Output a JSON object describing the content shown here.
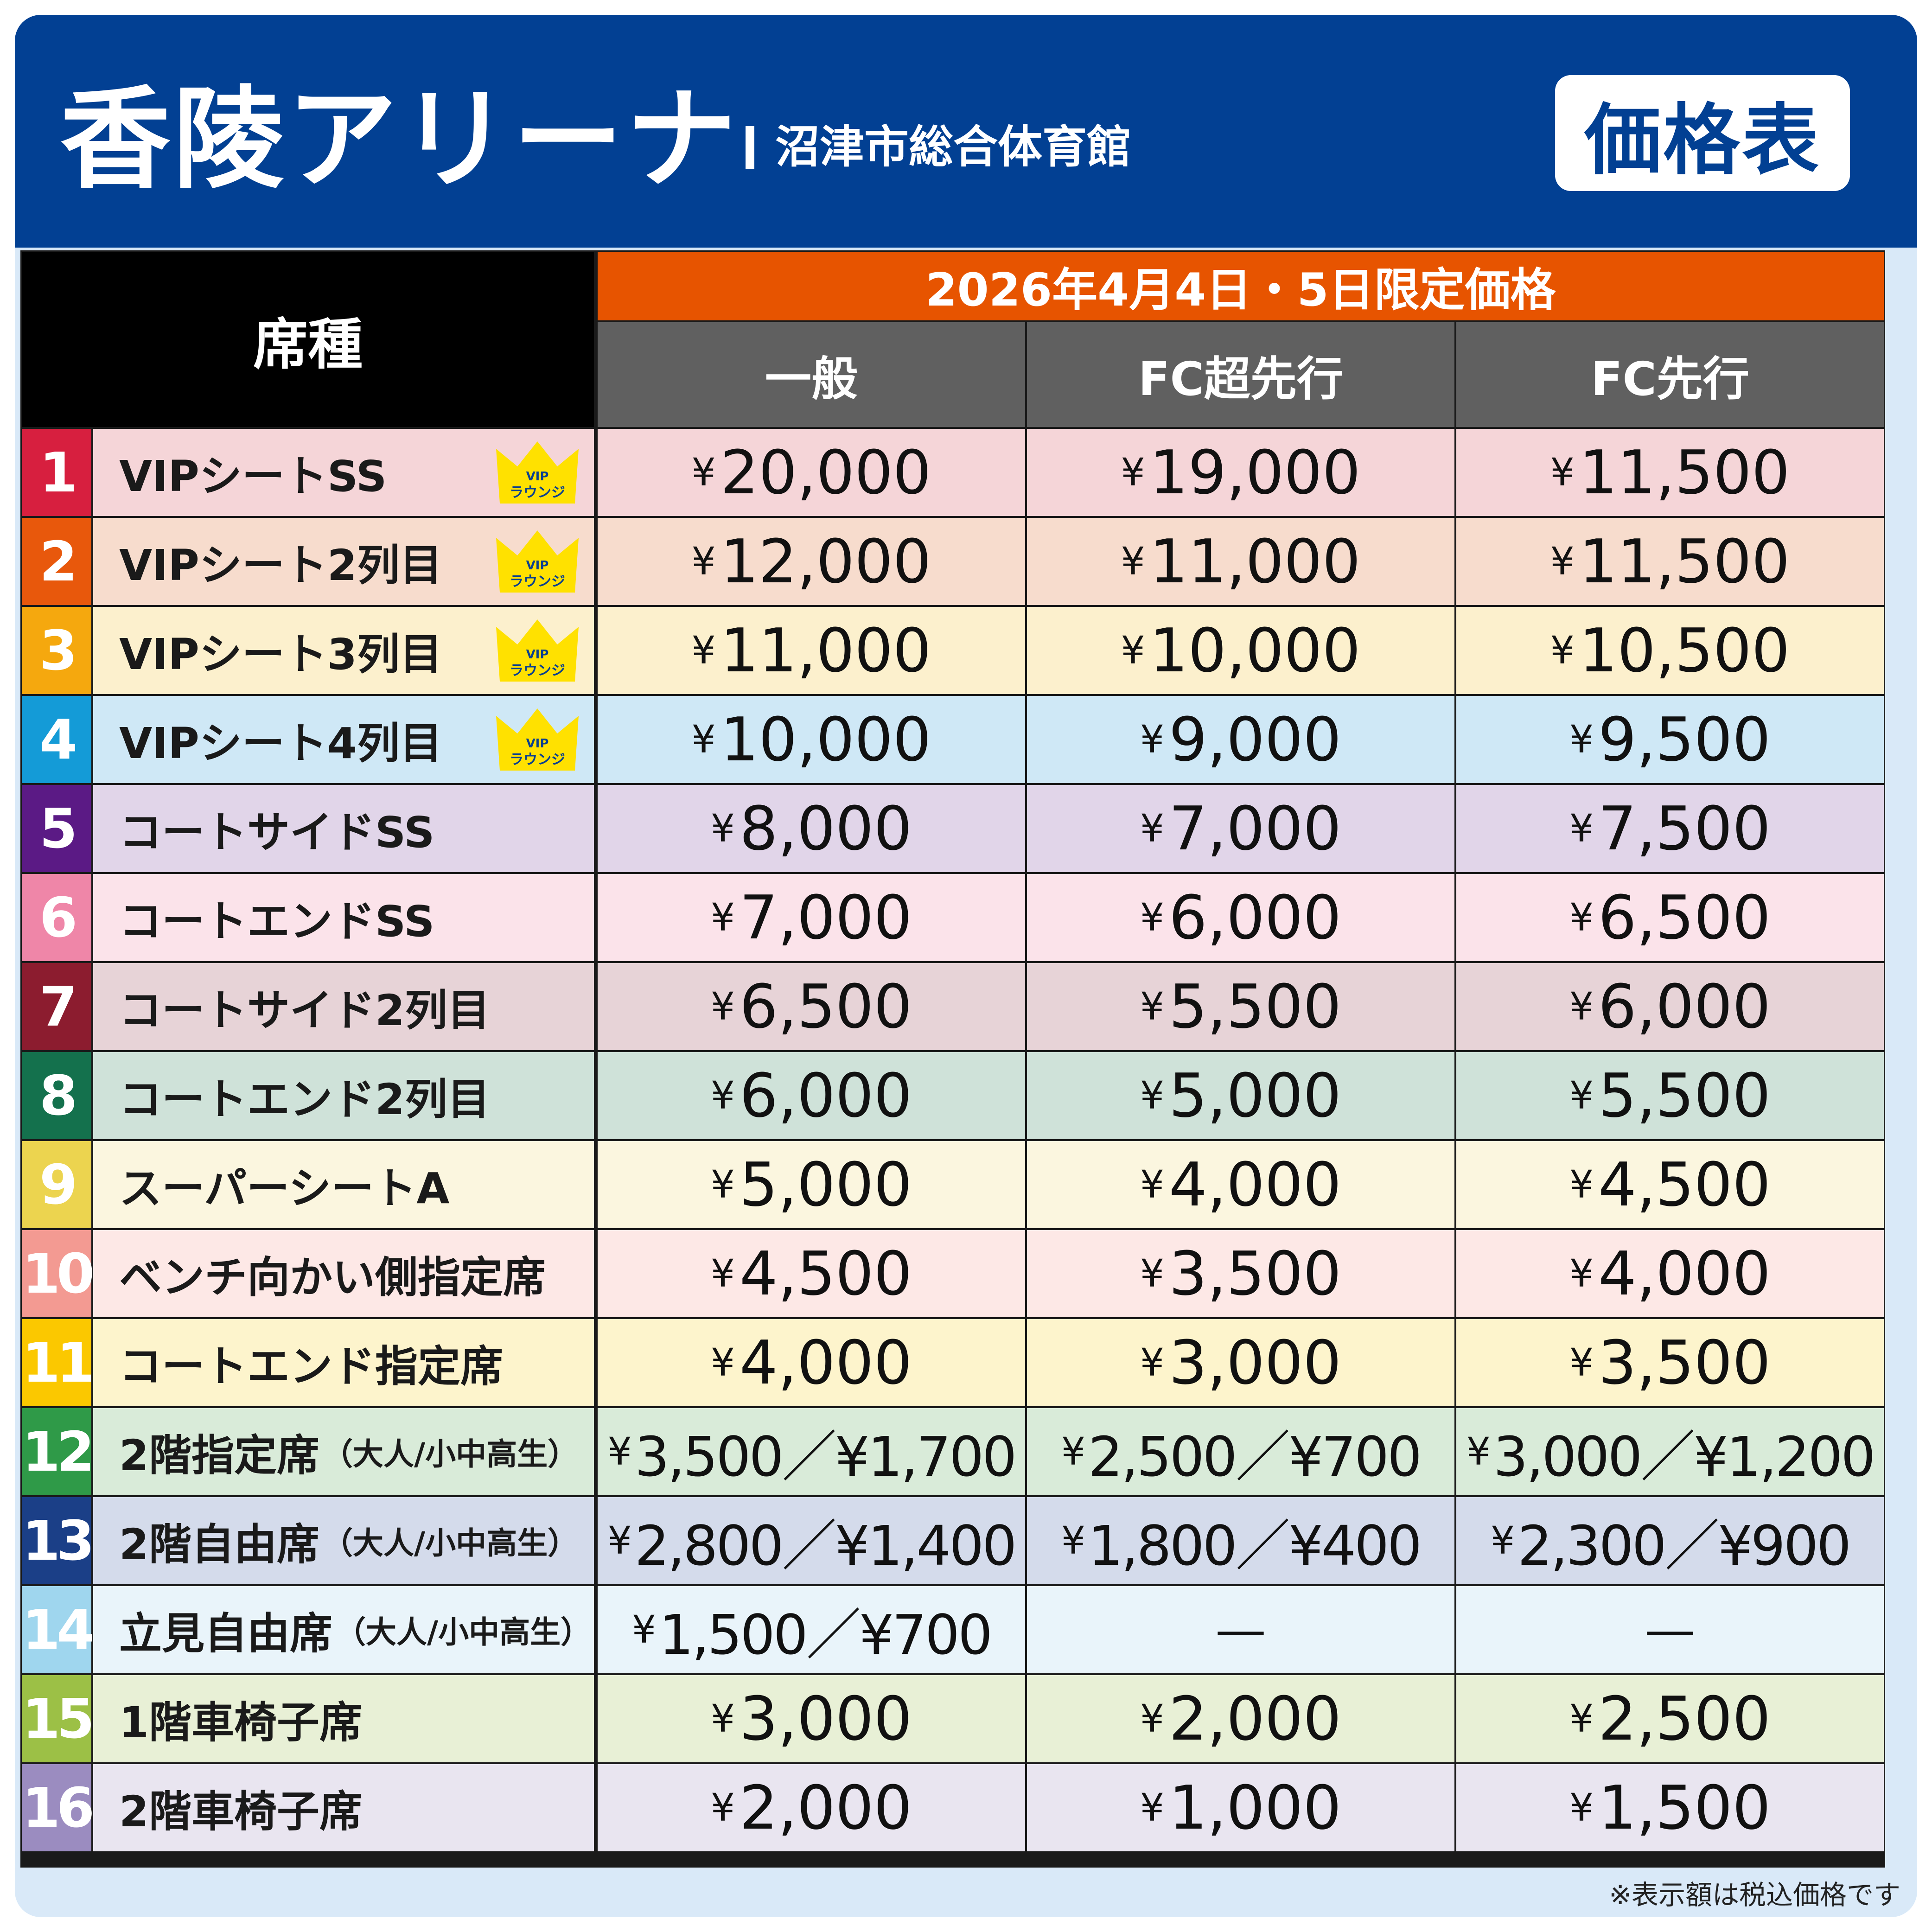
{
  "header": {
    "venue": "香陵アリーナ",
    "subtitle": "沼津市総合体育館",
    "badge": "価格表"
  },
  "table": {
    "seat_header": "席種",
    "date_header": "2026年4月4日・5日限定価格",
    "columns": [
      "一般",
      "FC超先行",
      "FC先行"
    ],
    "rows": [
      {
        "num": "1",
        "name": "VIPシートSS",
        "note": "",
        "vip": true,
        "prices": [
          "20,000",
          "19,000",
          "11,500"
        ],
        "num_color": "#d71f3f",
        "bg": "#f5d5d8"
      },
      {
        "num": "2",
        "name": "VIPシート2列目",
        "note": "",
        "vip": true,
        "prices": [
          "12,000",
          "11,000",
          "11,500"
        ],
        "num_color": "#e8580c",
        "bg": "#f7dccd"
      },
      {
        "num": "3",
        "name": "VIPシート3列目",
        "note": "",
        "vip": true,
        "prices": [
          "11,000",
          "10,000",
          "10,500"
        ],
        "num_color": "#f5a80e",
        "bg": "#fcf0cd"
      },
      {
        "num": "4",
        "name": "VIPシート4列目",
        "note": "",
        "vip": true,
        "prices": [
          "10,000",
          "9,000",
          "9,500"
        ],
        "num_color": "#149bd7",
        "bg": "#cfe8f6"
      },
      {
        "num": "5",
        "name": "コートサイドSS",
        "note": "",
        "vip": false,
        "prices": [
          "8,000",
          "7,000",
          "7,500"
        ],
        "num_color": "#5b1a85",
        "bg": "#e1d5e9"
      },
      {
        "num": "6",
        "name": "コートエンドSS",
        "note": "",
        "vip": false,
        "prices": [
          "7,000",
          "6,000",
          "6,500"
        ],
        "num_color": "#ef86a8",
        "bg": "#fbe3ea"
      },
      {
        "num": "7",
        "name": "コートサイド2列目",
        "note": "",
        "vip": false,
        "prices": [
          "6,500",
          "5,500",
          "6,000"
        ],
        "num_color": "#8c1c2f",
        "bg": "#e7d3d7"
      },
      {
        "num": "8",
        "name": "コートエンド2列目",
        "note": "",
        "vip": false,
        "prices": [
          "6,000",
          "5,000",
          "5,500"
        ],
        "num_color": "#14714d",
        "bg": "#cfe2d9"
      },
      {
        "num": "9",
        "name": "スーパーシートA",
        "note": "",
        "vip": false,
        "prices": [
          "5,000",
          "4,000",
          "4,500"
        ],
        "num_color": "#ecd44f",
        "bg": "#fbf6df"
      },
      {
        "num": "10",
        "name": "ベンチ向かい側指定席",
        "note": "",
        "vip": false,
        "prices": [
          "4,500",
          "3,500",
          "4,000"
        ],
        "num_color": "#f39a92",
        "bg": "#fde8e6"
      },
      {
        "num": "11",
        "name": "コートエンド指定席",
        "note": "",
        "vip": false,
        "prices": [
          "4,000",
          "3,000",
          "3,500"
        ],
        "num_color": "#fbc800",
        "bg": "#fdf4cc"
      },
      {
        "num": "12",
        "name": "2階指定席",
        "note": "（大人/小中高生）",
        "vip": false,
        "prices": [
          "3,500／¥1,700",
          "2,500／¥700",
          "3,000／¥1,200"
        ],
        "num_color": "#2f9a48",
        "bg": "#d9ebd9"
      },
      {
        "num": "13",
        "name": "2階自由席",
        "note": "（大人/小中高生）",
        "vip": false,
        "prices": [
          "2,800／¥1,400",
          "1,800／¥400",
          "2,300／¥900"
        ],
        "num_color": "#1b3f87",
        "bg": "#d4dbeb"
      },
      {
        "num": "14",
        "name": "立見自由席",
        "note": "（大人/小中高生）",
        "vip": false,
        "prices": [
          "1,500／¥700",
          "—",
          "—"
        ],
        "num_color": "#9fd6ee",
        "bg": "#e9f4fa"
      },
      {
        "num": "15",
        "name": "1階車椅子席",
        "note": "",
        "vip": false,
        "prices": [
          "3,000",
          "2,000",
          "2,500"
        ],
        "num_color": "#9cc046",
        "bg": "#e8f0d6"
      },
      {
        "num": "16",
        "name": "2階車椅子席",
        "note": "",
        "vip": false,
        "prices": [
          "2,000",
          "1,000",
          "1,500"
        ],
        "num_color": "#9b8cc0",
        "bg": "#e9e5f0"
      }
    ]
  },
  "vip_badge": {
    "line1": "VIP",
    "line2": "ラウンジ",
    "color": "#ffe100"
  },
  "footnote": "※表示額は税込価格です",
  "colors": {
    "header_bg": "#024093",
    "date_header_bg": "#e75400",
    "col_header_bg": "#606060"
  }
}
